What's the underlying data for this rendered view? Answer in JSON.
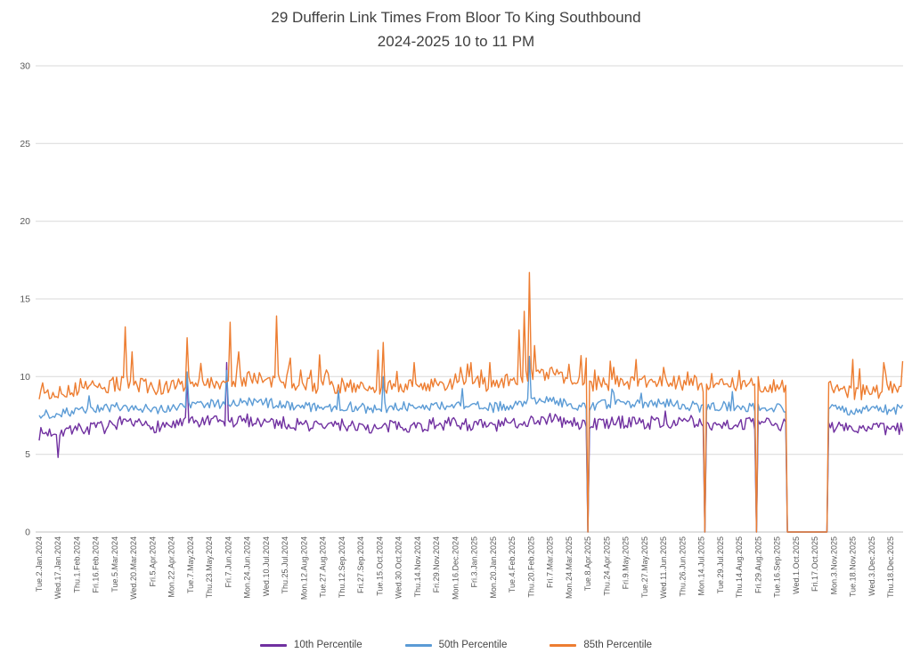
{
  "chart_data": {
    "type": "line",
    "title": "29 Dufferin Link Times From Bloor To King Southbound",
    "subtitle": "2024-2025 10 to 11 PM",
    "ylim": [
      0,
      30
    ],
    "yticks": [
      0,
      5,
      10,
      15,
      20,
      25,
      30
    ],
    "grid": "horizontal",
    "legend_position": "bottom",
    "grid_color": "#d9d9d9",
    "axis_color": "#c0c0c0",
    "tick_label_color": "#595959",
    "title_color": "#404040",
    "points_per_tick": 11,
    "tail_points": 7,
    "noise_seed": 7,
    "categories": [
      "Tue.2.Jan.2024",
      "Wed.17.Jan.2024",
      "Thu.1.Feb.2024",
      "Fri.16.Feb.2024",
      "Tue.5.Mar.2024",
      "Wed.20.Mar.2024",
      "Fri.5.Apr.2024",
      "Mon.22.Apr.2024",
      "Tue.7.May.2024",
      "Thu.23.May.2024",
      "Fri.7.Jun.2024",
      "Mon.24.Jun.2024",
      "Wed.10.Jul.2024",
      "Thu.25.Jul.2024",
      "Mon.12.Aug.2024",
      "Tue.27.Aug.2024",
      "Thu.12.Sep.2024",
      "Fri.27.Sep.2024",
      "Tue.15.Oct.2024",
      "Wed.30.Oct.2024",
      "Thu.14.Nov.2024",
      "Fri.29.Nov.2024",
      "Mon.16.Dec.2024",
      "Fri.3.Jan.2025",
      "Mon.20.Jan.2025",
      "Tue.4.Feb.2025",
      "Thu.20.Feb.2025",
      "Fri.7.Mar.2025",
      "Mon.24.Mar.2025",
      "Tue.8.Apr.2025",
      "Thu.24.Apr.2025",
      "Fri.9.May.2025",
      "Tue.27.May.2025",
      "Wed.11.Jun.2025",
      "Thu.26.Jun.2025",
      "Mon.14.Jul.2025",
      "Tue.29.Jul.2025",
      "Thu.14.Aug.2025",
      "Fri.29.Aug.2025",
      "Tue.16.Sep.2025",
      "Wed.1.Oct.2025",
      "Fri.17.Oct.2025",
      "Mon.3.Nov.2025",
      "Tue.18.Nov.2025",
      "Wed.3.Dec.2025",
      "Thu.18.Dec.2025"
    ],
    "series": [
      {
        "name": "10th Percentile",
        "color": "#7030a0",
        "amp": 0.42,
        "burst_prob": 0.03,
        "burst_max": 0.8,
        "anchors": [
          6.3,
          6.5,
          6.6,
          6.7,
          6.8,
          6.9,
          6.8,
          6.9,
          7.0,
          7.1,
          7.0,
          7.2,
          7.1,
          7.0,
          6.9,
          6.8,
          6.9,
          6.8,
          6.6,
          6.9,
          6.8,
          6.9,
          7.0,
          6.9,
          6.8,
          7.0,
          7.2,
          7.3,
          7.0,
          6.9,
          7.0,
          7.1,
          7.0,
          7.1,
          7.0,
          6.9,
          7.0,
          6.9,
          7.0,
          6.9,
          6.8,
          6.8,
          6.8,
          6.7,
          6.6,
          6.6
        ],
        "spikes": [
          [
            1.0,
            4.8
          ],
          [
            7.8,
            9.9
          ],
          [
            9.9,
            10.9
          ]
        ]
      },
      {
        "name": "50th Percentile",
        "color": "#5b9bd5",
        "amp": 0.32,
        "burst_prob": 0.03,
        "burst_max": 0.9,
        "anchors": [
          7.5,
          7.7,
          7.8,
          7.9,
          8.0,
          8.1,
          7.9,
          8.0,
          8.2,
          8.3,
          8.2,
          8.4,
          8.3,
          8.2,
          8.1,
          8.0,
          8.1,
          8.0,
          7.8,
          8.1,
          8.0,
          8.1,
          8.2,
          8.1,
          8.0,
          8.2,
          8.5,
          8.6,
          8.2,
          8.1,
          8.2,
          8.3,
          8.2,
          8.3,
          8.2,
          8.0,
          8.1,
          8.0,
          8.1,
          8.0,
          7.9,
          7.9,
          7.9,
          7.8,
          7.8,
          7.9
        ],
        "spikes": [
          [
            7.8,
            10.3
          ],
          [
            9.9,
            10.4
          ],
          [
            18.2,
            10.0
          ],
          [
            25.9,
            11.3
          ]
        ]
      },
      {
        "name": "85th Percentile",
        "color": "#ed7d31",
        "amp": 0.5,
        "burst_prob": 0.06,
        "burst_max": 1.4,
        "anchors": [
          8.8,
          9.0,
          9.2,
          9.3,
          9.5,
          9.6,
          9.3,
          9.4,
          9.6,
          9.7,
          9.6,
          9.9,
          9.8,
          9.7,
          9.5,
          9.3,
          9.4,
          9.3,
          9.1,
          9.5,
          9.4,
          9.5,
          9.7,
          9.6,
          9.5,
          9.8,
          10.1,
          10.2,
          9.7,
          9.5,
          9.6,
          9.7,
          9.6,
          9.7,
          9.6,
          9.4,
          9.5,
          9.4,
          9.5,
          9.3,
          9.2,
          9.2,
          9.1,
          9.0,
          9.0,
          9.2
        ],
        "spikes": [
          [
            0.2,
            9.6
          ],
          [
            4.5,
            13.2
          ],
          [
            4.9,
            11.6
          ],
          [
            7.8,
            12.5
          ],
          [
            10.1,
            13.5
          ],
          [
            10.5,
            11.6
          ],
          [
            12.5,
            13.9
          ],
          [
            13.3,
            11.2
          ],
          [
            14.8,
            11.4
          ],
          [
            17.9,
            11.7
          ],
          [
            18.2,
            12.2
          ],
          [
            19.8,
            10.9
          ],
          [
            22.3,
            10.6
          ],
          [
            22.8,
            10.9
          ],
          [
            23.8,
            10.9
          ],
          [
            25.4,
            13.0
          ],
          [
            25.6,
            14.2
          ],
          [
            25.9,
            16.7
          ],
          [
            26.2,
            12.0
          ],
          [
            28.0,
            10.8
          ],
          [
            28.9,
            11.2
          ],
          [
            30.2,
            11.0
          ],
          [
            31.5,
            11.1
          ],
          [
            33.0,
            10.6
          ],
          [
            34.3,
            10.3
          ],
          [
            35.5,
            10.2
          ],
          [
            37.0,
            10.4
          ],
          [
            38.0,
            10.0
          ],
          [
            38.8,
            9.8
          ],
          [
            41.8,
            9.7
          ],
          [
            43.0,
            11.1
          ],
          [
            43.4,
            10.5
          ],
          [
            44.6,
            10.9
          ],
          [
            45.6,
            11.0
          ]
        ]
      }
    ],
    "zero_dips": [
      29.0,
      35.2,
      37.9
    ],
    "zero_gap": [
      39.5,
      41.7
    ]
  }
}
